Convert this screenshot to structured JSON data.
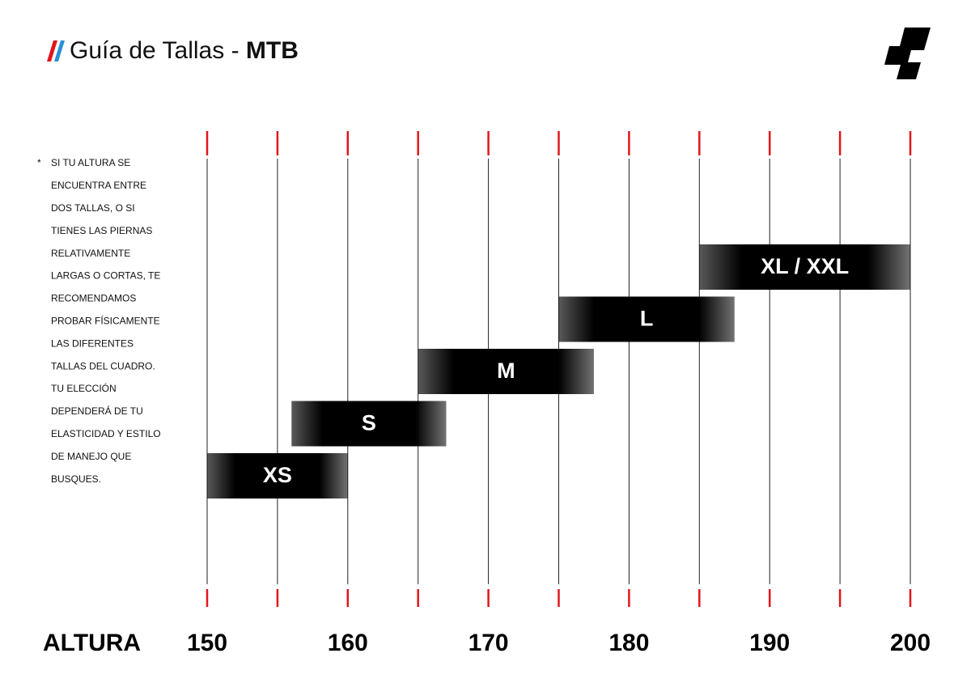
{
  "chart_data": {
    "type": "range-bar",
    "title": "Guía de Tallas - ",
    "title_bold": "MTB",
    "x_label": "ALTURA",
    "note_marker": "*",
    "note_lines": [
      "SI TU ALTURA SE",
      "ENCUENTRA ENTRE",
      "DOS TALLAS, O SI",
      "TIENES LAS PIERNAS",
      "RELATIVAMENTE",
      "LARGAS O CORTAS, TE",
      "RECOMENDAMOS",
      "PROBAR FÍSICAMENTE",
      "LAS DIFERENTES",
      "TALLAS DEL CUADRO.",
      "TU ELECCIÓN",
      "DEPENDERÁ DE TU",
      "ELASTICIDAD Y ESTILO",
      "DE MANEJO QUE",
      "BUSQUES."
    ],
    "categories": [
      "XS",
      "S",
      "M",
      "L",
      "XL / XXL"
    ],
    "starts": [
      150,
      156,
      165,
      175,
      185
    ],
    "ends": [
      160,
      167,
      177.5,
      187.5,
      200
    ],
    "color": "#000000",
    "xlim": [
      150,
      200
    ],
    "xticks": [
      150,
      160,
      170,
      180,
      190,
      200
    ],
    "minor_xticks": [
      155,
      165,
      175,
      185,
      195
    ],
    "tick_color": "#e0161b",
    "grid": true
  }
}
